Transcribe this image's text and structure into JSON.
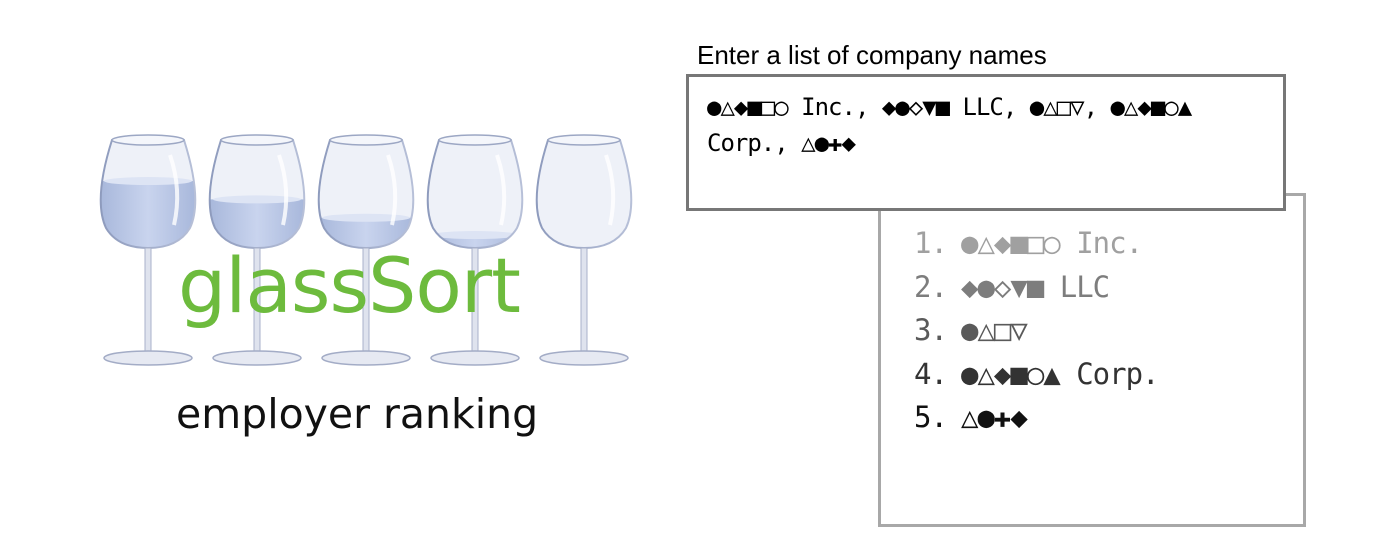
{
  "brand": {
    "title": "glassSort",
    "subtitle": "employer ranking"
  },
  "glasses": [
    {
      "fill": 0.62
    },
    {
      "fill": 0.45
    },
    {
      "fill": 0.28
    },
    {
      "fill": 0.12
    },
    {
      "fill": 0.0
    }
  ],
  "input": {
    "label": "Enter a list of company names",
    "value": "●△◆■□○ Inc., ◆●◇▼■ LLC, ●△□▽, ●△◆■○▲ Corp., △●✚◆"
  },
  "results": {
    "items": [
      {
        "rank": "1.",
        "name": "●△◆■□○ Inc.",
        "color": "#a0a0a0"
      },
      {
        "rank": "2.",
        "name": "◆●◇▼■ LLC",
        "color": "#7d7d7d"
      },
      {
        "rank": "3.",
        "name": "●△□▽",
        "color": "#5a5a5a"
      },
      {
        "rank": "4.",
        "name": "●△◆■○▲ Corp.",
        "color": "#333333"
      },
      {
        "rank": "5.",
        "name": "△●✚◆",
        "color": "#111111"
      }
    ]
  }
}
